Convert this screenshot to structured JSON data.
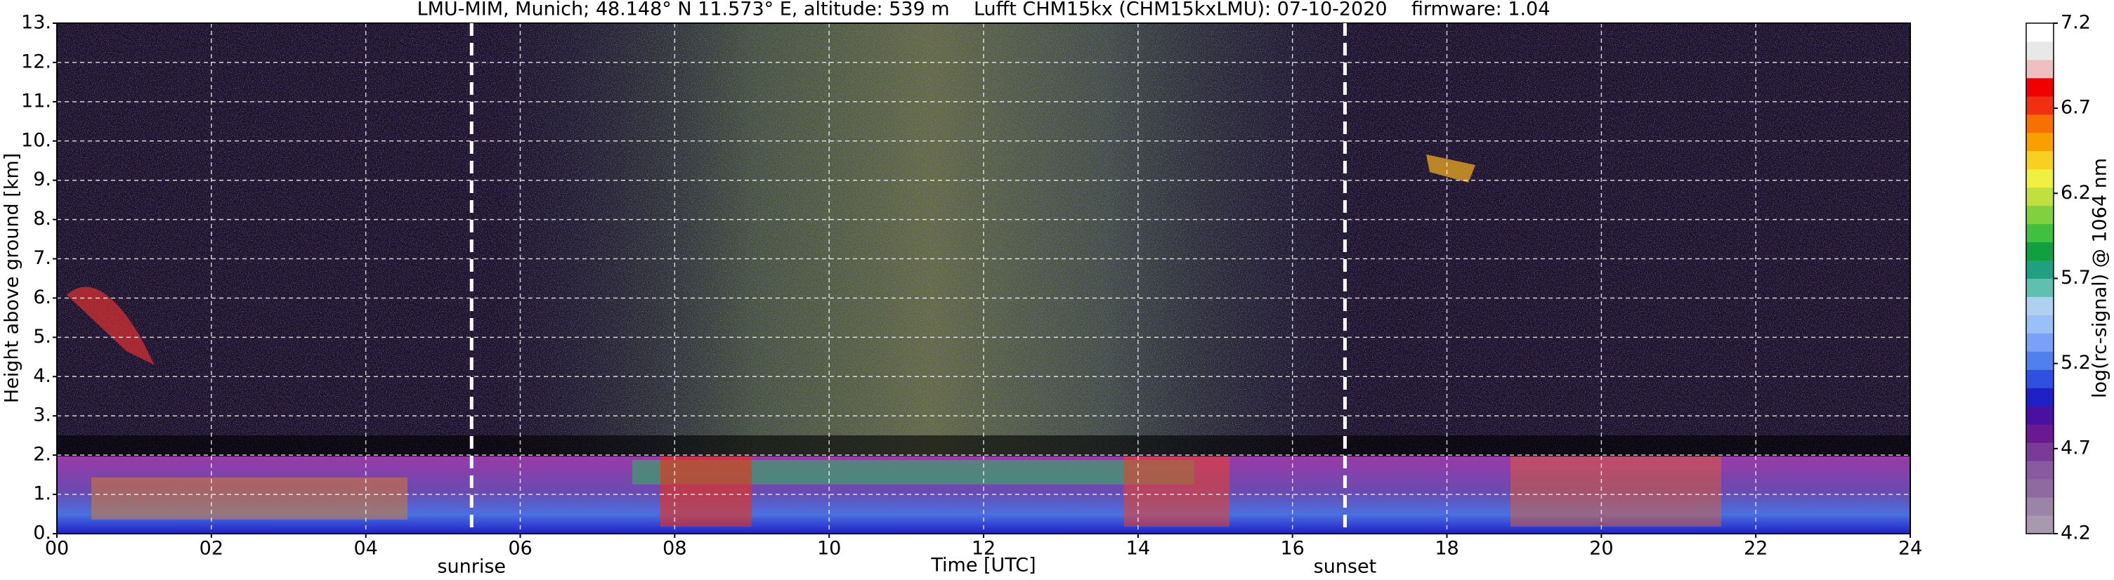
{
  "chart_data": {
    "type": "heatmap",
    "title": "LMU-MIM, Munich; 48.148° N 11.573° E, altitude: 539 m    Lufft CHM15kx (CHM15kxLMU): 07-10-2020    firmware: 1.04",
    "x_label": "Time [UTC]",
    "y_label": "Height above ground [km]",
    "xlim": [
      0,
      24
    ],
    "xticks": [
      {
        "value": 0,
        "label": "00"
      },
      {
        "value": 2,
        "label": "02"
      },
      {
        "value": 4,
        "label": "04"
      },
      {
        "value": 6,
        "label": "06"
      },
      {
        "value": 8,
        "label": "08"
      },
      {
        "value": 10,
        "label": "10"
      },
      {
        "value": 12,
        "label": "12"
      },
      {
        "value": 14,
        "label": "14"
      },
      {
        "value": 16,
        "label": "16"
      },
      {
        "value": 18,
        "label": "18"
      },
      {
        "value": 20,
        "label": "20"
      },
      {
        "value": 22,
        "label": "22"
      },
      {
        "value": 24,
        "label": "24"
      }
    ],
    "ylim": [
      0,
      13
    ],
    "yticks": [
      {
        "value": 0,
        "label": "0."
      },
      {
        "value": 1,
        "label": "1."
      },
      {
        "value": 2,
        "label": "2."
      },
      {
        "value": 3,
        "label": "3."
      },
      {
        "value": 4,
        "label": "4."
      },
      {
        "value": 5,
        "label": "5."
      },
      {
        "value": 6,
        "label": "6."
      },
      {
        "value": 7,
        "label": "7."
      },
      {
        "value": 8,
        "label": "8."
      },
      {
        "value": 9,
        "label": "9."
      },
      {
        "value": 10,
        "label": "10."
      },
      {
        "value": 11,
        "label": "11."
      },
      {
        "value": 12,
        "label": "12."
      },
      {
        "value": 13,
        "label": "13."
      }
    ],
    "grid": true,
    "events": [
      {
        "label": "sunrise",
        "x": 5.37
      },
      {
        "label": "sunset",
        "x": 16.68
      }
    ],
    "colorbar": {
      "label": "log(rc-signal) @ 1064 nm",
      "clim": [
        4.2,
        7.2
      ],
      "ticks": [
        4.2,
        4.7,
        5.2,
        5.7,
        6.2,
        6.7,
        7.2
      ],
      "colors": [
        "#a89aae",
        "#9a84a8",
        "#8e6aa0",
        "#8a5aa0",
        "#7a3a98",
        "#6a1a90",
        "#4a10a0",
        "#2020c8",
        "#3050e0",
        "#5080f0",
        "#7aa0f8",
        "#9ac0f8",
        "#b0d0f0",
        "#60c0b0",
        "#20a080",
        "#10a040",
        "#40c040",
        "#80d040",
        "#c0e040",
        "#f0f040",
        "#f8d020",
        "#f8a000",
        "#f87000",
        "#f03010",
        "#f00000",
        "#f0c0c0",
        "#e8e8e8",
        "#ffffff"
      ]
    }
  }
}
